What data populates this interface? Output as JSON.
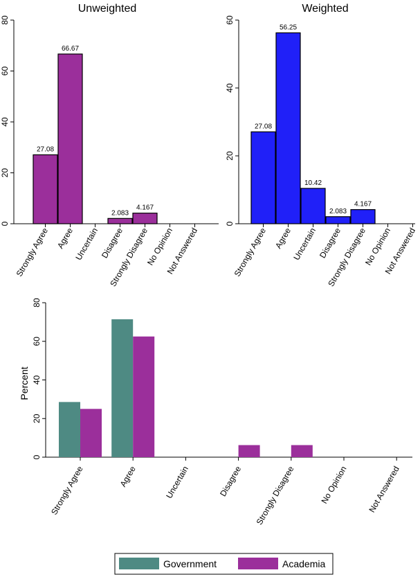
{
  "chart_data": [
    {
      "type": "bar",
      "title": "Unweighted",
      "categories": [
        "Strongly Agree",
        "Agree",
        "Uncertain",
        "Disagree",
        "Strongly Disagree",
        "No Opinion",
        "Not Answered"
      ],
      "values": [
        27.08,
        66.67,
        0,
        2.083,
        4.167,
        0,
        0
      ],
      "data_labels": [
        "27.08",
        "66.67",
        "",
        "2.083",
        "4.167",
        "",
        ""
      ],
      "ylim": [
        0,
        80
      ],
      "yticks": [
        0,
        20,
        40,
        60,
        80
      ],
      "color": "#9b2f9b",
      "grid": false
    },
    {
      "type": "bar",
      "title": "Weighted",
      "categories": [
        "Strongly Agree",
        "Agree",
        "Uncertain",
        "Disagree",
        "Strongly Disagree",
        "No Opinion",
        "Not Answered"
      ],
      "values": [
        27.08,
        56.25,
        10.42,
        2.083,
        4.167,
        0,
        0
      ],
      "data_labels": [
        "27.08",
        "56.25",
        "10.42",
        "2.083",
        "4.167",
        "",
        ""
      ],
      "ylim": [
        0,
        60
      ],
      "yticks": [
        0,
        20,
        40,
        60
      ],
      "color": "#2020f8",
      "grid": false
    },
    {
      "type": "bar",
      "title": "",
      "ylabel": "Percent",
      "categories": [
        "Strongly Agree",
        "Agree",
        "Uncertain",
        "Disagree",
        "Strongly Disagree",
        "No Opinion",
        "Not Answered"
      ],
      "series": [
        {
          "name": "Government",
          "color": "#4e8a83",
          "values": [
            28.57,
            71.43,
            0,
            0,
            0,
            0,
            0
          ]
        },
        {
          "name": "Academia",
          "color": "#9b2f9b",
          "values": [
            25,
            62.5,
            0,
            6.25,
            6.25,
            0,
            0
          ]
        }
      ],
      "ylim": [
        0,
        80
      ],
      "yticks": [
        0,
        20,
        40,
        60,
        80
      ],
      "legend_position": "bottom",
      "grid": false
    }
  ]
}
